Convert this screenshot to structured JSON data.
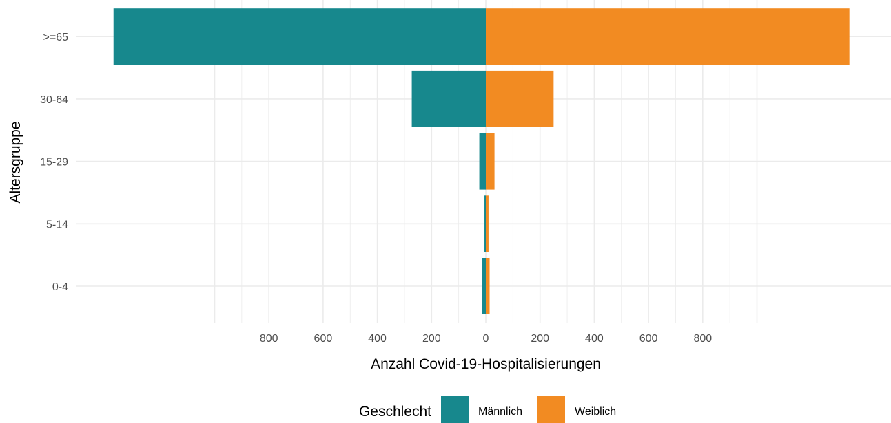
{
  "chart_data": {
    "type": "bar",
    "orientation": "horizontal",
    "layout": "population-pyramid",
    "categories": [
      "0-4",
      "5-14",
      "15-29",
      "30-64",
      ">=65"
    ],
    "series": [
      {
        "name": "Männlich",
        "color": "#17888D",
        "values": [
          14,
          5,
          24,
          273,
          1373
        ]
      },
      {
        "name": "Weiblich",
        "color": "#F28B22",
        "values": [
          14,
          10,
          32,
          250,
          1341
        ]
      }
    ],
    "xlabel": "Anzahl Covid-19-Hospitalisierungen",
    "ylabel": "Altersgruppe",
    "xticks": [
      -800,
      -600,
      -400,
      -200,
      0,
      200,
      400,
      600,
      800
    ],
    "xtick_labels": [
      "800",
      "600",
      "400",
      "200",
      "0",
      "200",
      "400",
      "600",
      "800"
    ],
    "xlim": [
      -1373,
      1341
    ],
    "grid": true,
    "legend": {
      "title": "Geschlecht",
      "position": "bottom"
    }
  }
}
